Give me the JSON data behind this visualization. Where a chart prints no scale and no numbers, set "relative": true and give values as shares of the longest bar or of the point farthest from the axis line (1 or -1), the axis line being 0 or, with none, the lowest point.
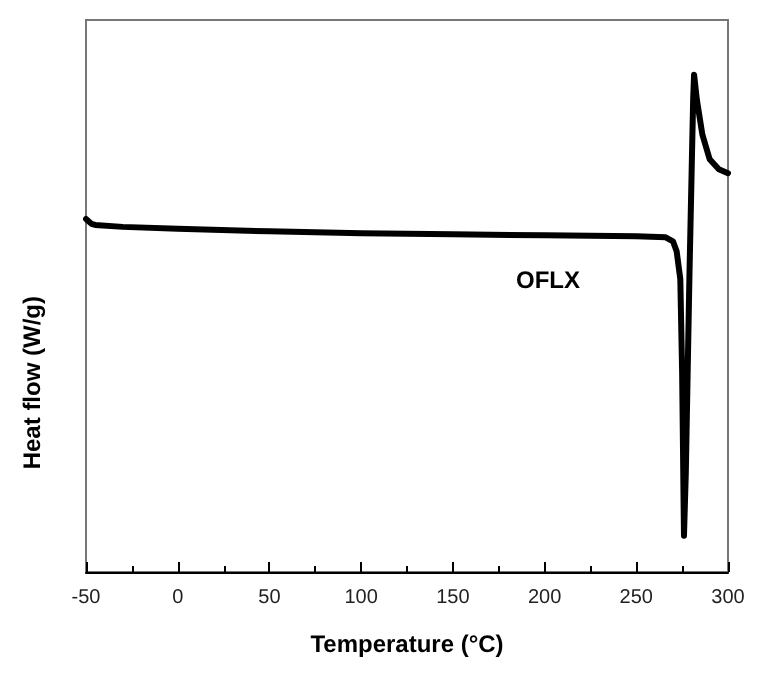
{
  "chart_data": {
    "type": "line",
    "relative": true,
    "xlabel": "Temperature (°C)",
    "ylabel": "Heat flow (W/g)",
    "annotations": [
      "OFLX"
    ],
    "xlim": [
      -50,
      300
    ],
    "xticks": [
      -50,
      0,
      50,
      100,
      150,
      200,
      250,
      300
    ],
    "grid": false,
    "marker": "none",
    "line_style": "solid",
    "series": [
      {
        "color": "#000000",
        "x": [
          -50,
          -47,
          -45,
          -30,
          0,
          50,
          100,
          150,
          200,
          250,
          266,
          270,
          272,
          274,
          275,
          276,
          277,
          279,
          281,
          281.5,
          283,
          286,
          290,
          295,
          300
        ],
        "values": [
          0.71,
          0.7,
          0.698,
          0.694,
          0.69,
          0.685,
          0.681,
          0.679,
          0.677,
          0.675,
          0.673,
          0.665,
          0.645,
          0.589,
          0.4,
          0.073,
          0.2,
          0.6,
          0.95,
          1,
          0.95,
          0.88,
          0.83,
          0.81,
          0.802
        ]
      }
    ]
  }
}
